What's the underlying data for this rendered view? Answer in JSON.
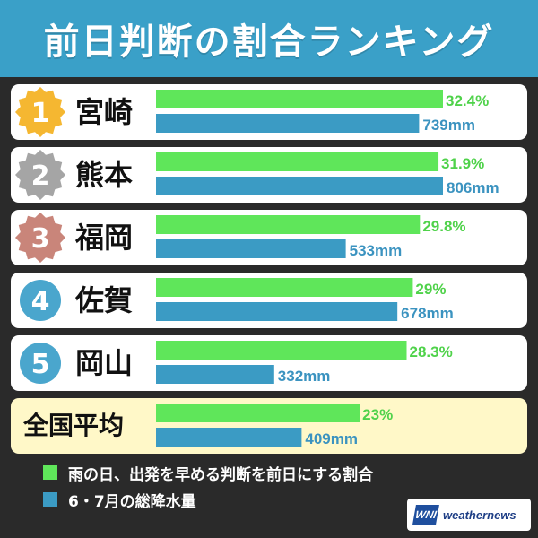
{
  "title": "前日判断の割合ランキング",
  "colors": {
    "green": "#5fe65a",
    "blue": "#3b9bc4",
    "card_bg": "#ffffff",
    "average_card_bg": "#fff8c8",
    "medal_gold": "#f5b731",
    "medal_silver": "#a5a5a5",
    "medal_bronze": "#c9857a",
    "medal_blue": "#4aa6cd"
  },
  "chart_data": {
    "type": "bar",
    "orientation": "horizontal",
    "categories": [
      "宮崎",
      "熊本",
      "福岡",
      "佐賀",
      "岡山",
      "全国平均"
    ],
    "ranks": [
      "1",
      "2",
      "3",
      "4",
      "5",
      ""
    ],
    "series": [
      {
        "name": "雨の日、出発を早める判断を前日にする割合",
        "values": [
          32.4,
          31.9,
          29.8,
          29,
          28.3,
          23
        ],
        "labels": [
          "32.4%",
          "31.9%",
          "29.8%",
          "29%",
          "28.3%",
          "23%"
        ],
        "color": "#5fe65a"
      },
      {
        "name": "6・7月の総降水量",
        "values": [
          739,
          806,
          533,
          678,
          332,
          409
        ],
        "labels": [
          "739mm",
          "806mm",
          "533mm",
          "678mm",
          "332mm",
          "409mm"
        ],
        "color": "#3b9bc4"
      }
    ],
    "legend": "bottom-left",
    "grid": false
  },
  "legend": {
    "items": [
      "雨の日、出発を早める判断を前日にする割合",
      "6・7月の総降水量"
    ]
  },
  "logo": {
    "mark": "WNI",
    "text": "weathernews"
  }
}
